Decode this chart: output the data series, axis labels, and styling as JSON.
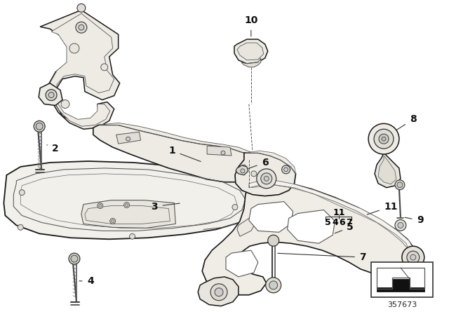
{
  "background_color": "#ffffff",
  "part_number": "357673",
  "line_color": "#1a1a1a",
  "fill_color": "#f5f3ef",
  "fill_dark": "#e8e5df",
  "fill_mid": "#eeebe5",
  "stroke_width": 1.1,
  "thin_stroke": 0.6,
  "label_fontsize": 10,
  "pn_fontsize": 8
}
